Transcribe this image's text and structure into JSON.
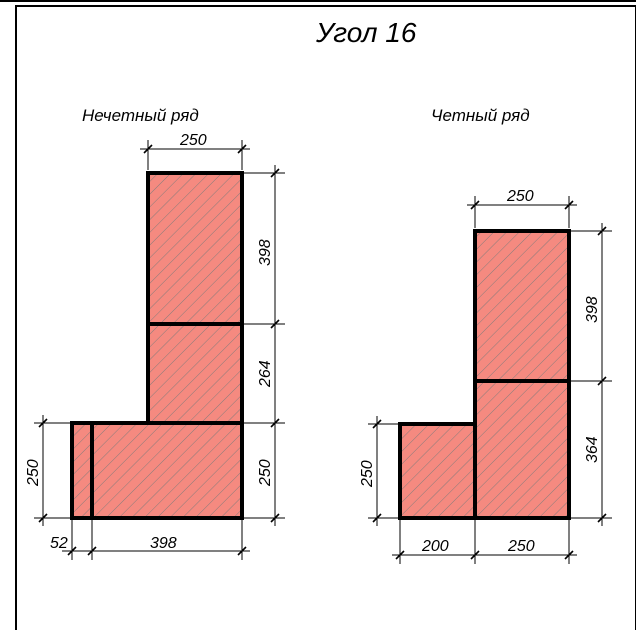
{
  "title": "Угол 16",
  "colors": {
    "brick_fill": "#f58a80",
    "hatch": "#7a7a7a",
    "outline": "#000000"
  },
  "odd_row": {
    "label": "Нечетный ряд",
    "dims": {
      "top_width": "250",
      "right_upper": "398",
      "right_middle": "264",
      "right_lower": "250",
      "left_height": "250",
      "bottom_small": "52",
      "bottom_long": "398"
    }
  },
  "even_row": {
    "label": "Четный ряд",
    "dims": {
      "top_width": "250",
      "right_upper": "398",
      "right_lower": "364",
      "left_height": "250",
      "bottom_left": "200",
      "bottom_right": "250"
    }
  }
}
